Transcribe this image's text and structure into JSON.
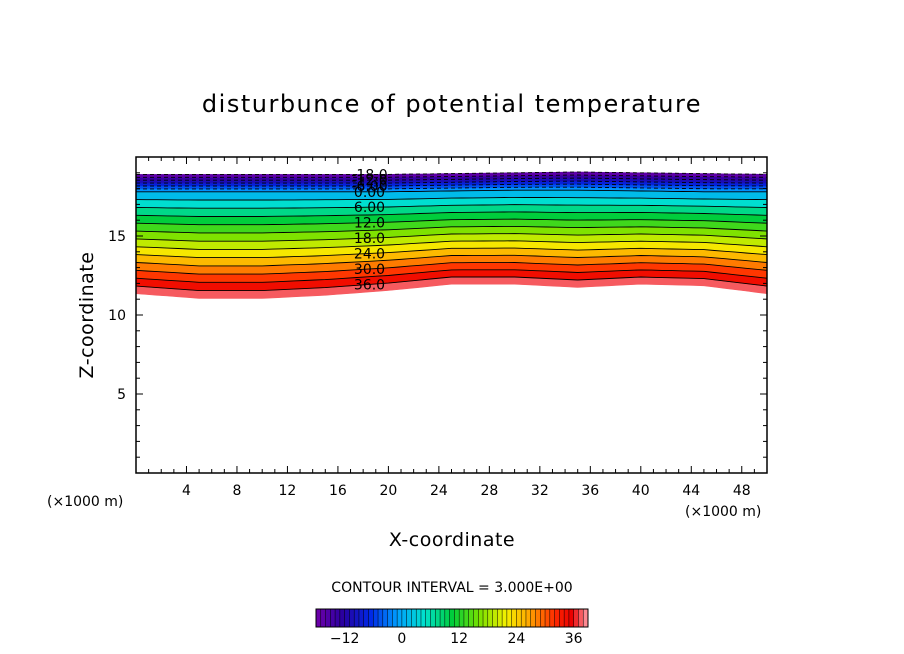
{
  "chart_data": {
    "type": "heatmap",
    "subtype": "filled-contour",
    "title": "disturbunce of potential temperature",
    "xlabel": "X-coordinate",
    "ylabel": "Z-coordinate",
    "x_unit_label": "(×1000 m)",
    "y_unit_label": "(×1000 m)",
    "xlim": [
      0,
      50
    ],
    "ylim": [
      0,
      20
    ],
    "x_ticks": [
      4,
      8,
      12,
      16,
      20,
      24,
      28,
      32,
      36,
      40,
      44,
      48
    ],
    "y_ticks": [
      5,
      10,
      15
    ],
    "contour_interval_text": "CONTOUR INTERVAL = 3.000E+00",
    "contour_interval": 3,
    "levels_min": -18,
    "levels_max": 39,
    "contour_labels": [
      "-18.0",
      "-12.0",
      "-6.00",
      "0.00",
      "6.00",
      "12.0",
      "18.0",
      "24.0",
      "30.0",
      "36.0"
    ],
    "contour_label_x": 18.5,
    "field_profile": {
      "x": [
        0,
        5,
        10,
        15,
        20,
        25,
        30,
        35,
        40,
        45,
        50
      ],
      "z_value_38": [
        11.5,
        11.2,
        11.2,
        11.4,
        11.7,
        12.1,
        12.1,
        11.9,
        12.1,
        12.0,
        11.5
      ],
      "z_value_minus18": [
        18.9,
        18.9,
        18.9,
        18.9,
        18.9,
        18.95,
        19.0,
        19.05,
        19.0,
        18.95,
        18.9
      ],
      "z_value_0": [
        17.8,
        17.8,
        17.8,
        17.8,
        17.8,
        17.85,
        17.9,
        17.9,
        17.85,
        17.8,
        17.8
      ]
    },
    "domain_top": 19.1,
    "colorbar": {
      "ticks": [
        -12,
        0,
        12,
        24,
        36
      ],
      "min": -18,
      "max": 39
    },
    "grid": false,
    "colormap": "rainbow"
  }
}
